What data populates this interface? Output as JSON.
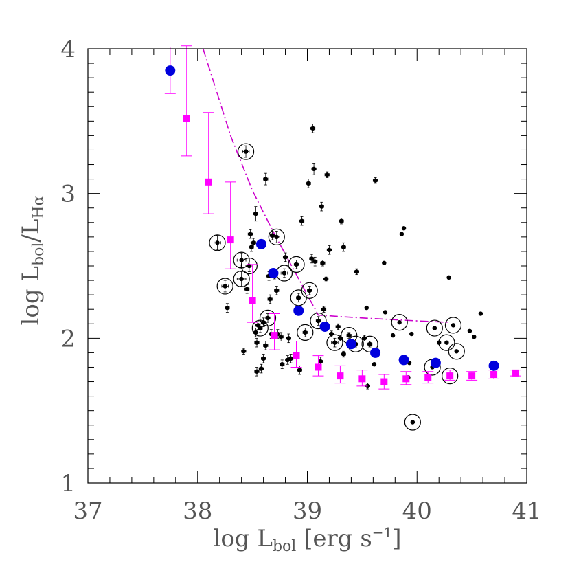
{
  "chart_data": {
    "type": "scatter",
    "title": "",
    "xlabel_parts": {
      "prefix": "log L",
      "sub": "bol",
      "middle": " [erg s",
      "sup": "−1",
      "suffix": "]"
    },
    "ylabel_parts": {
      "prefix": "log L",
      "sub1": "bol",
      "slash": "/L",
      "sub2": "Hα"
    },
    "xlim": [
      37,
      41
    ],
    "ylim": [
      1,
      4
    ],
    "xticks": [
      37,
      38,
      39,
      40,
      41
    ],
    "xtick_labels": [
      "37",
      "38",
      "39",
      "40",
      "41"
    ],
    "yticks": [
      1,
      2,
      3,
      4
    ],
    "ytick_labels": [
      "1",
      "2",
      "3",
      "4"
    ],
    "x_minor_step": 0.2,
    "y_minor_step": 0.1,
    "grid": false,
    "legend": "none",
    "colors": {
      "individual": "#000000",
      "binned_a": "#ff00ff",
      "binned_b": "#0000dd",
      "model_curve": "#cc00cc",
      "axes": "#000000",
      "tick_labels": "#555555"
    },
    "series": [
      {
        "marker": "circle",
        "color": "#000000",
        "points": [
          {
            "x": 38.18,
            "y": 2.66,
            "ex": 0.03,
            "ey": 0.05,
            "ring": true
          },
          {
            "x": 38.25,
            "y": 2.36,
            "ex": 0.03,
            "ey": 0.04,
            "ring": true
          },
          {
            "x": 38.27,
            "y": 2.21,
            "ex": 0.02,
            "ey": 0.03
          },
          {
            "x": 38.4,
            "y": 2.54,
            "ex": 0.04,
            "ey": 0.05,
            "ring": true
          },
          {
            "x": 38.4,
            "y": 2.41,
            "ex": 0.04,
            "ey": 0.05,
            "ring": true
          },
          {
            "x": 38.42,
            "y": 1.91,
            "ex": 0.02,
            "ey": 0.02
          },
          {
            "x": 38.44,
            "y": 3.29,
            "ex": 0.03,
            "ey": 0.04,
            "ring": true
          },
          {
            "x": 38.45,
            "y": 2.34,
            "ex": 0.02,
            "ey": 0.03
          },
          {
            "x": 38.47,
            "y": 2.5,
            "ex": 0.03,
            "ey": 0.04,
            "ring": true
          },
          {
            "x": 38.48,
            "y": 2.72,
            "ex": 0.02,
            "ey": 0.03
          },
          {
            "x": 38.49,
            "y": 2.63,
            "ex": 0.02,
            "ey": 0.03
          },
          {
            "x": 38.51,
            "y": 2.66,
            "ex": 0.02,
            "ey": 0.03
          },
          {
            "x": 38.53,
            "y": 2.86,
            "ex": 0.02,
            "ey": 0.05
          },
          {
            "x": 38.53,
            "y": 2.04,
            "ex": 0.02,
            "ey": 0.03
          },
          {
            "x": 38.54,
            "y": 1.97,
            "ex": 0.02,
            "ey": 0.03
          },
          {
            "x": 38.54,
            "y": 1.77,
            "ex": 0.02,
            "ey": 0.03
          },
          {
            "x": 38.55,
            "y": 2.09,
            "ex": 0.02,
            "ey": 0.03
          },
          {
            "x": 38.57,
            "y": 2.07,
            "ex": 0.02,
            "ey": 0.03,
            "ring": true
          },
          {
            "x": 38.58,
            "y": 1.79,
            "ex": 0.02,
            "ey": 0.03
          },
          {
            "x": 38.6,
            "y": 1.86,
            "ex": 0.02,
            "ey": 0.03
          },
          {
            "x": 38.6,
            "y": 2.11,
            "ex": 0.02,
            "ey": 0.03
          },
          {
            "x": 38.62,
            "y": 3.1,
            "ex": 0.02,
            "ey": 0.04
          },
          {
            "x": 38.62,
            "y": 1.95,
            "ex": 0.02,
            "ey": 0.03
          },
          {
            "x": 38.64,
            "y": 2.14,
            "ex": 0.02,
            "ey": 0.03,
            "ring": true
          },
          {
            "x": 38.65,
            "y": 2.43,
            "ex": 0.02,
            "ey": 0.03
          },
          {
            "x": 38.66,
            "y": 2.27,
            "ex": 0.02,
            "ey": 0.03
          },
          {
            "x": 38.67,
            "y": 2.03,
            "ex": 0.02,
            "ey": 0.03
          },
          {
            "x": 38.68,
            "y": 2.71,
            "ex": 0.02,
            "ey": 0.03
          },
          {
            "x": 38.7,
            "y": 2.44,
            "ex": 0.02,
            "ey": 0.03
          },
          {
            "x": 38.72,
            "y": 2.7,
            "ex": 0.03,
            "ey": 0.04,
            "ring": true
          },
          {
            "x": 38.72,
            "y": 2.33,
            "ex": 0.02,
            "ey": 0.03
          },
          {
            "x": 38.73,
            "y": 2.03,
            "ex": 0.02,
            "ey": 0.03
          },
          {
            "x": 38.76,
            "y": 2.01,
            "ex": 0.02,
            "ey": 0.03
          },
          {
            "x": 38.77,
            "y": 1.82,
            "ex": 0.02,
            "ey": 0.03
          },
          {
            "x": 38.79,
            "y": 2.45,
            "ex": 0.03,
            "ey": 0.03,
            "ring": true
          },
          {
            "x": 38.8,
            "y": 2.56,
            "ex": 0.02,
            "ey": 0.03
          },
          {
            "x": 38.82,
            "y": 1.85,
            "ex": 0.02,
            "ey": 0.03
          },
          {
            "x": 38.83,
            "y": 2.0,
            "ex": 0.02,
            "ey": 0.03
          },
          {
            "x": 38.85,
            "y": 1.86,
            "ex": 0.02,
            "ey": 0.03
          },
          {
            "x": 38.9,
            "y": 2.51,
            "ex": 0.02,
            "ey": 0.03,
            "ring": true
          },
          {
            "x": 38.92,
            "y": 2.28,
            "ex": 0.02,
            "ey": 0.03,
            "ring": true
          },
          {
            "x": 38.93,
            "y": 1.78,
            "ex": 0.02,
            "ey": 0.03
          },
          {
            "x": 38.95,
            "y": 2.81,
            "ex": 0.02,
            "ey": 0.03
          },
          {
            "x": 38.98,
            "y": 2.04,
            "ex": 0.02,
            "ey": 0.03,
            "ring": true
          },
          {
            "x": 39.01,
            "y": 3.07,
            "ex": 0.02,
            "ey": 0.03
          },
          {
            "x": 39.02,
            "y": 2.33,
            "ex": 0.02,
            "ey": 0.03,
            "ring": true
          },
          {
            "x": 39.04,
            "y": 2.55,
            "ex": 0.02,
            "ey": 0.03
          },
          {
            "x": 39.05,
            "y": 3.45,
            "ex": 0.02,
            "ey": 0.03
          },
          {
            "x": 39.06,
            "y": 3.17,
            "ex": 0.02,
            "ey": 0.04
          },
          {
            "x": 39.07,
            "y": 2.53,
            "ex": 0.02,
            "ey": 0.03
          },
          {
            "x": 39.1,
            "y": 2.12,
            "ex": 0.02,
            "ey": 0.03,
            "ring": true
          },
          {
            "x": 39.12,
            "y": 1.84,
            "ex": 0.02,
            "ey": 0.03
          },
          {
            "x": 39.13,
            "y": 2.91,
            "ex": 0.02,
            "ey": 0.03
          },
          {
            "x": 39.14,
            "y": 2.52,
            "ex": 0.02,
            "ey": 0.02
          },
          {
            "x": 39.15,
            "y": 2.2,
            "ex": 0.02,
            "ey": 0.02
          },
          {
            "x": 39.17,
            "y": 2.41,
            "ex": 0.02,
            "ey": 0.02
          },
          {
            "x": 39.18,
            "y": 3.13,
            "ex": 0.02,
            "ey": 0.02
          },
          {
            "x": 39.2,
            "y": 2.61,
            "ex": 0.02,
            "ey": 0.03
          },
          {
            "x": 39.22,
            "y": 2.03,
            "ex": 0.02,
            "ey": 0.02
          },
          {
            "x": 39.25,
            "y": 1.97,
            "ex": 0.03,
            "ey": 0.03,
            "ring": true
          },
          {
            "x": 39.28,
            "y": 2.08,
            "ex": 0.02,
            "ey": 0.02
          },
          {
            "x": 39.3,
            "y": 2.0,
            "ex": 0.02,
            "ey": 0.02
          },
          {
            "x": 39.31,
            "y": 2.81,
            "ex": 0.02,
            "ey": 0.02
          },
          {
            "x": 39.33,
            "y": 2.63,
            "ex": 0.02,
            "ey": 0.03
          },
          {
            "x": 39.33,
            "y": 1.89,
            "ex": 0.02,
            "ey": 0.02
          },
          {
            "x": 39.38,
            "y": 2.02,
            "ex": 0.02,
            "ey": 0.02,
            "ring": true
          },
          {
            "x": 39.44,
            "y": 1.96,
            "ex": 0.02,
            "ey": 0.02,
            "ring": true
          },
          {
            "x": 39.45,
            "y": 2.46,
            "ex": 0.02,
            "ey": 0.02
          },
          {
            "x": 39.52,
            "y": 2.0,
            "ex": 0.02,
            "ey": 0.02
          },
          {
            "x": 39.54,
            "y": 2.21,
            "ex": 0.0,
            "ey": 0.0
          },
          {
            "x": 39.55,
            "y": 1.67,
            "ex": 0.02,
            "ey": 0.02
          },
          {
            "x": 39.57,
            "y": 1.96,
            "ex": 0.02,
            "ey": 0.02,
            "ring": true
          },
          {
            "x": 39.61,
            "y": 1.82,
            "ex": 0.0,
            "ey": 0.0
          },
          {
            "x": 39.62,
            "y": 3.09,
            "ex": 0.02,
            "ey": 0.02
          },
          {
            "x": 39.7,
            "y": 2.52,
            "ex": 0.0,
            "ey": 0.0
          },
          {
            "x": 39.71,
            "y": 2.18,
            "ex": 0.0,
            "ey": 0.0
          },
          {
            "x": 39.78,
            "y": 2.02,
            "ex": 0.0,
            "ey": 0.0
          },
          {
            "x": 39.84,
            "y": 2.11,
            "ex": 0.0,
            "ey": 0.0,
            "ring": true
          },
          {
            "x": 39.86,
            "y": 2.72,
            "ex": 0.0,
            "ey": 0.0
          },
          {
            "x": 39.88,
            "y": 2.76,
            "ex": 0.0,
            "ey": 0.0
          },
          {
            "x": 39.92,
            "y": 1.73,
            "ex": 0.0,
            "ey": 0.0
          },
          {
            "x": 39.93,
            "y": 1.83,
            "ex": 0.0,
            "ey": 0.0
          },
          {
            "x": 39.95,
            "y": 2.03,
            "ex": 0.0,
            "ey": 0.0
          },
          {
            "x": 39.96,
            "y": 1.42,
            "ex": 0.0,
            "ey": 0.0,
            "ring": true
          },
          {
            "x": 40.14,
            "y": 1.8,
            "ex": 0.0,
            "ey": 0.0,
            "ring": true
          },
          {
            "x": 40.16,
            "y": 2.07,
            "ex": 0.0,
            "ey": 0.0,
            "ring": true
          },
          {
            "x": 40.16,
            "y": 2.07,
            "ex": 0.0,
            "ey": 0.0
          },
          {
            "x": 40.2,
            "y": 1.97,
            "ex": 0.0,
            "ey": 0.0
          },
          {
            "x": 40.27,
            "y": 1.97,
            "ex": 0.0,
            "ey": 0.0,
            "ring": true
          },
          {
            "x": 40.29,
            "y": 2.42,
            "ex": 0.0,
            "ey": 0.0
          },
          {
            "x": 40.3,
            "y": 1.74,
            "ex": 0.0,
            "ey": 0.0,
            "ring": true
          },
          {
            "x": 40.33,
            "y": 2.09,
            "ex": 0.0,
            "ey": 0.0,
            "ring": true
          },
          {
            "x": 40.36,
            "y": 1.91,
            "ex": 0.0,
            "ey": 0.0,
            "ring": true
          },
          {
            "x": 40.48,
            "y": 2.05,
            "ex": 0.0,
            "ey": 0.0
          },
          {
            "x": 40.52,
            "y": 2.01,
            "ex": 0.0,
            "ey": 0.0
          },
          {
            "x": 40.58,
            "y": 2.17,
            "ex": 0.0,
            "ey": 0.0
          }
        ]
      },
      {
        "marker": "square",
        "color": "#ff00ff",
        "points": [
          {
            "x": 37.9,
            "y": 3.52,
            "ey_lo": 0.26,
            "ey_hi": 0.5
          },
          {
            "x": 38.1,
            "y": 3.08,
            "ey_lo": 0.22,
            "ey_hi": 0.48
          },
          {
            "x": 38.3,
            "y": 2.68,
            "ey_lo": 0.2,
            "ey_hi": 0.4
          },
          {
            "x": 38.5,
            "y": 2.26,
            "ey_lo": 0.15,
            "ey_hi": 0.25
          },
          {
            "x": 38.7,
            "y": 2.02,
            "ey_lo": 0.1,
            "ey_hi": 0.15
          },
          {
            "x": 38.9,
            "y": 1.88,
            "ey_lo": 0.08,
            "ey_hi": 0.1
          },
          {
            "x": 39.1,
            "y": 1.8,
            "ey_lo": 0.06,
            "ey_hi": 0.08
          },
          {
            "x": 39.3,
            "y": 1.74,
            "ey_lo": 0.05,
            "ey_hi": 0.07
          },
          {
            "x": 39.5,
            "y": 1.72,
            "ey_lo": 0.05,
            "ey_hi": 0.06
          },
          {
            "x": 39.7,
            "y": 1.7,
            "ey_lo": 0.05,
            "ey_hi": 0.05
          },
          {
            "x": 39.9,
            "y": 1.72,
            "ey_lo": 0.04,
            "ey_hi": 0.05
          },
          {
            "x": 40.1,
            "y": 1.73,
            "ey_lo": 0.04,
            "ey_hi": 0.04
          },
          {
            "x": 40.3,
            "y": 1.74,
            "ey_lo": 0.03,
            "ey_hi": 0.04
          },
          {
            "x": 40.5,
            "y": 1.74,
            "ey_lo": 0.03,
            "ey_hi": 0.03
          },
          {
            "x": 40.7,
            "y": 1.75,
            "ey_lo": 0.03,
            "ey_hi": 0.03
          },
          {
            "x": 40.9,
            "y": 1.76,
            "ey_lo": 0.02,
            "ey_hi": 0.02
          }
        ]
      },
      {
        "marker": "circle",
        "color": "#0000dd",
        "points": [
          {
            "x": 37.75,
            "y": 3.85,
            "ey_lo": 0.16,
            "ey_hi": 0.16
          },
          {
            "x": 38.58,
            "y": 2.65
          },
          {
            "x": 38.69,
            "y": 2.45
          },
          {
            "x": 38.92,
            "y": 2.19
          },
          {
            "x": 39.16,
            "y": 2.08
          },
          {
            "x": 39.4,
            "y": 1.96
          },
          {
            "x": 39.62,
            "y": 1.9
          },
          {
            "x": 39.88,
            "y": 1.85
          },
          {
            "x": 40.17,
            "y": 1.83
          },
          {
            "x": 40.7,
            "y": 1.81
          }
        ]
      }
    ],
    "curve": {
      "style": "dash-dot",
      "color": "#cc00cc",
      "x": [
        37.5,
        37.62,
        38.05,
        38.3,
        38.5,
        38.7,
        38.9,
        39.1,
        39.5,
        40.0,
        40.3
      ],
      "y": [
        4.0,
        4.0,
        4.0,
        3.4,
        3.02,
        2.72,
        2.44,
        2.16,
        2.14,
        2.12,
        2.11
      ]
    }
  }
}
